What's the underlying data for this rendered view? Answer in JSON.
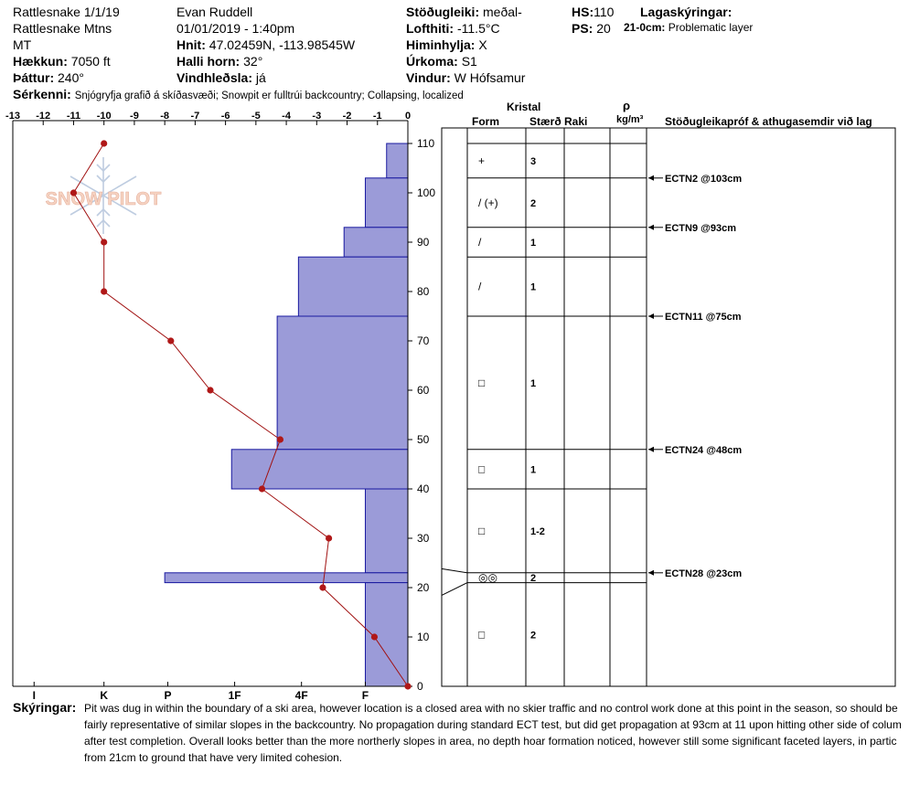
{
  "header": {
    "col1": [
      "Rattlesnake 1/1/19",
      "Rattlesnake Mtns",
      "MT"
    ],
    "elevation_label": "Hækkun:",
    "elevation": "7050 ft",
    "aspect_label": "Þáttur:",
    "aspect": "240°",
    "observer": "Evan Ruddell",
    "datetime": "01/01/2019 - 1:40pm",
    "coords_label": "Hnit:",
    "coords": "47.02459N, -113.98545W",
    "slope_label": "Halli horn:",
    "slope": "32°",
    "wind_loading_label": "Vindhleðsla:",
    "wind_loading": "já",
    "stability_label": "Stöðugleiki:",
    "stability": "meðal-",
    "air_temp_label": "Lofthiti:",
    "air_temp": "-11.5°C",
    "sky_label": "Himinhylja:",
    "sky": "X",
    "precip_label": "Úrkoma:",
    "precip": "S1",
    "wind_label": "Vindur:",
    "wind": "W Hófsamur",
    "hs_label": "HS:",
    "hs": "110",
    "ps_label": "PS:",
    "ps": "20",
    "layer_notes_label": "Lagaskýringar:",
    "layer_note_range": "21-0cm:",
    "layer_note": "Problematic layer",
    "features_label": "Sérkenni:",
    "features": "Snjógryfja grafið á skíðasvæði; Snowpit er fulltrúi backcountry; Collapsing, localized"
  },
  "table_headers": {
    "crystal": "Kristal",
    "form": "Form",
    "size": "Stærð",
    "moisture": "Raki",
    "rho": "ρ",
    "density_unit": "kg/m³",
    "tests": "Stöðugleikapróf & athugasemdir við lag"
  },
  "watermark": "SNOW PILOT",
  "footer": {
    "label": "Skýringar:",
    "lines": [
      "Pit was dug in within the boundary of a ski area, however location is a closed area with no skier traffic and no control work done at this point in the season, so should be",
      "fairly representative of similar slopes in the backcountry. No propagation during standard ECT test, but did get propagation at 93cm at 11 upon hitting other side of colum",
      "after test completion. Overall looks better than the more northerly slopes in area, no depth hoar formation noticed, however still some significant faceted layers, in partic",
      "from 21cm to ground that have very limited cohesion."
    ]
  },
  "chart_data": {
    "type": "snow-profile",
    "temperature_axis": {
      "ticks": [
        -13,
        -12,
        -11,
        -10,
        -9,
        -8,
        -7,
        -6,
        -5,
        -4,
        -3,
        -2,
        -1,
        0
      ],
      "range": [
        -13,
        0
      ]
    },
    "depth_axis": {
      "ticks": [
        0,
        10,
        20,
        30,
        40,
        50,
        60,
        70,
        80,
        90,
        100,
        110
      ],
      "range": [
        0,
        110
      ],
      "unit": "cm"
    },
    "hardness_axis": {
      "labels": [
        "I",
        "K",
        "P",
        "1F",
        "4F",
        "F"
      ],
      "scale": "hand hardness"
    },
    "temperature_profile": [
      {
        "depth": 110,
        "temp": -10
      },
      {
        "depth": 100,
        "temp": -11
      },
      {
        "depth": 90,
        "temp": -10
      },
      {
        "depth": 80,
        "temp": -10
      },
      {
        "depth": 70,
        "temp": -7.8
      },
      {
        "depth": 60,
        "temp": -6.5
      },
      {
        "depth": 50,
        "temp": -4.2
      },
      {
        "depth": 40,
        "temp": -4.8
      },
      {
        "depth": 30,
        "temp": -2.6
      },
      {
        "depth": 20,
        "temp": -2.8
      },
      {
        "depth": 10,
        "temp": -1.1
      },
      {
        "depth": 0,
        "temp": 0
      }
    ],
    "layers": [
      {
        "top": 110,
        "bottom": 103,
        "hardness_temp": -0.7,
        "form": "+",
        "size": "3"
      },
      {
        "top": 103,
        "bottom": 93,
        "hardness_temp": -1.4,
        "form": "/ (+)",
        "size": "2"
      },
      {
        "top": 93,
        "bottom": 87,
        "hardness_temp": -2.1,
        "form": "/",
        "size": "1"
      },
      {
        "top": 87,
        "bottom": 75,
        "hardness_temp": -3.6,
        "form": "/",
        "size": "1"
      },
      {
        "top": 75,
        "bottom": 48,
        "hardness_temp": -4.3,
        "form": "□",
        "size": "1"
      },
      {
        "top": 48,
        "bottom": 40,
        "hardness_temp": -5.8,
        "form": "□",
        "size": "1"
      },
      {
        "top": 40,
        "bottom": 23,
        "hardness_temp": -1.4,
        "form": "□",
        "size": "1-2"
      },
      {
        "top": 23,
        "bottom": 21,
        "hardness_temp": -8,
        "form": "◎◎",
        "size": "2"
      },
      {
        "top": 21,
        "bottom": 0,
        "hardness_temp": -1.4,
        "form": "□",
        "size": "2"
      }
    ],
    "tests": [
      {
        "depth": 103,
        "label": "ECTN2 @103cm"
      },
      {
        "depth": 93,
        "label": "ECTN9 @93cm"
      },
      {
        "depth": 75,
        "label": "ECTN11 @75cm"
      },
      {
        "depth": 48,
        "label": "ECTN24 @48cm"
      },
      {
        "depth": 23,
        "label": "ECTN28 @23cm"
      }
    ],
    "colors": {
      "hardness_fill": "#9b9bd8",
      "hardness_stroke": "#1a1aa0",
      "temp_line": "#a01010",
      "temp_point": "#b01818"
    }
  }
}
